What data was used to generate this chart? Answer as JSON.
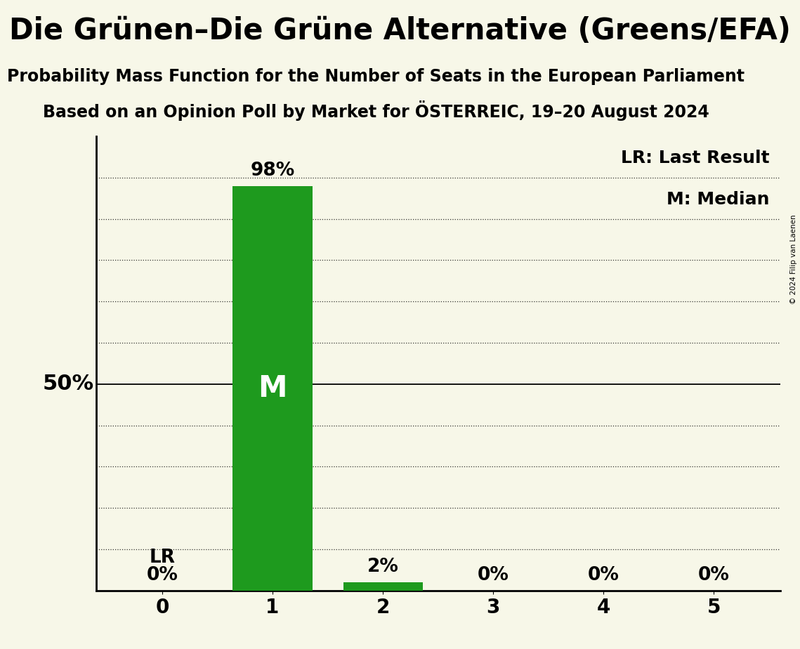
{
  "title": "Die Grünen–Die Grüne Alternative (Greens/EFA)",
  "subtitle1": "Probability Mass Function for the Number of Seats in the European Parliament",
  "subtitle2": "Based on an Opinion Poll by Market for ÖSTERREIC, 19–20 August 2024",
  "copyright": "© 2024 Filip van Laenen",
  "categories": [
    0,
    1,
    2,
    3,
    4,
    5
  ],
  "values": [
    0,
    98,
    2,
    0,
    0,
    0
  ],
  "bar_color": "#1e9a1e",
  "background_color": "#f7f7e8",
  "median_seat": 1,
  "last_result_seat": 0,
  "legend_lr": "LR: Last Result",
  "legend_m": "M: Median",
  "ylabel_50": "50%",
  "ylim": [
    0,
    110
  ],
  "title_fontsize": 30,
  "subtitle_fontsize": 17,
  "bar_label_fontsize": 19,
  "axis_label_fontsize": 22,
  "tick_fontsize": 20,
  "legend_fontsize": 18,
  "median_label_fontsize": 30
}
